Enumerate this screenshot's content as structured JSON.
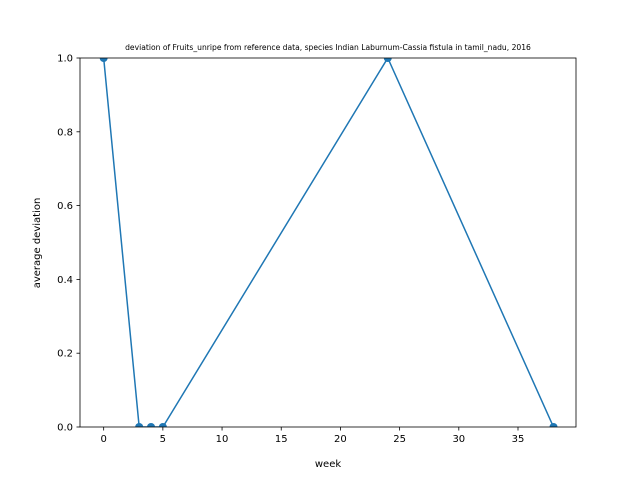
{
  "chart_data": {
    "type": "line",
    "title": "deviation of Fruits_unripe from reference data, species Indian Laburnum-Cassia fistula in tamil_nadu, 2016",
    "xlabel": "week",
    "ylabel": "average deviation",
    "xlim": [
      -2,
      39.9
    ],
    "ylim": [
      0,
      1.0
    ],
    "xticks": [
      0,
      5,
      10,
      15,
      20,
      25,
      30,
      35
    ],
    "yticks": [
      0.0,
      0.2,
      0.4,
      0.6,
      0.8,
      1.0
    ],
    "ytick_labels": [
      "0.0",
      "0.2",
      "0.4",
      "0.6",
      "0.8",
      "1.0"
    ],
    "grid": false,
    "series": [
      {
        "color": "#1f77b4",
        "marker": "circle",
        "x": [
          0,
          3,
          4,
          5,
          24,
          38
        ],
        "y": [
          1.0,
          0.0,
          0.0,
          0.0,
          1.0,
          0.0
        ]
      }
    ]
  }
}
